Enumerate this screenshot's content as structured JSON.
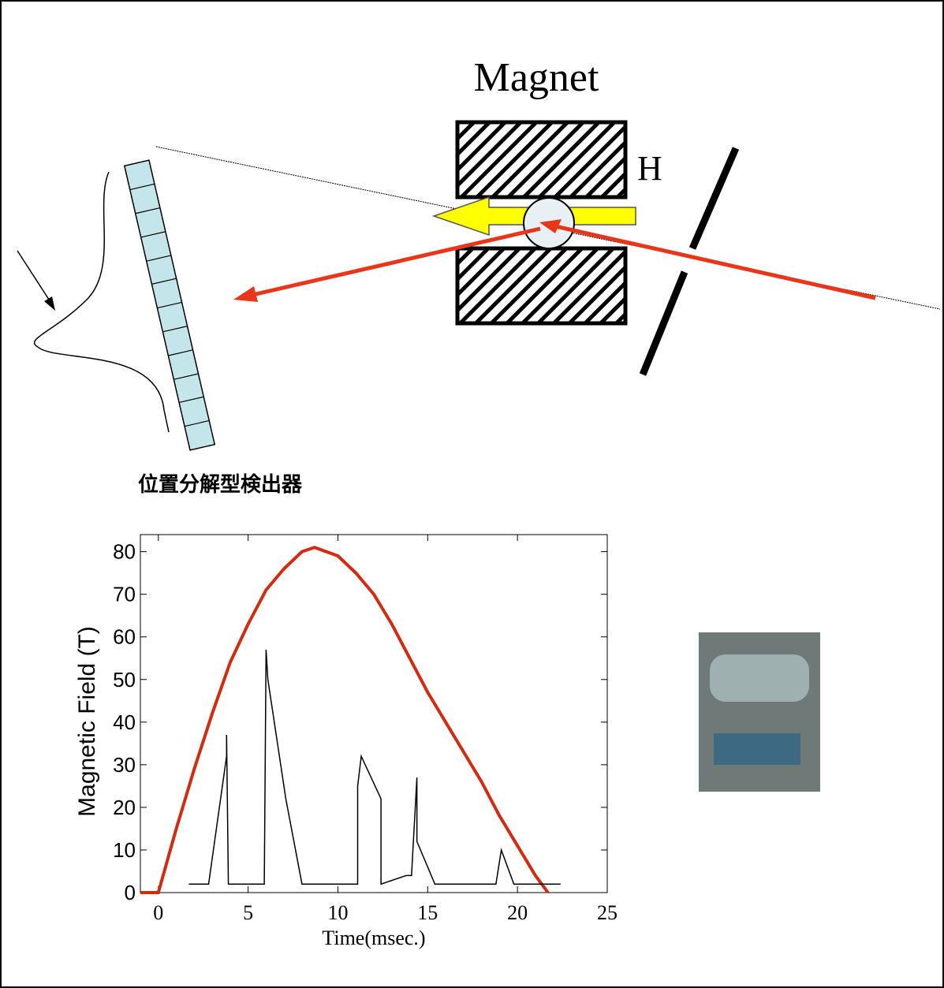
{
  "diagram": {
    "magnet_label": "Magnet",
    "field_label": "H",
    "detector_label": "位置分解型検出器"
  },
  "chart_data": {
    "type": "line",
    "x_label": "Time(msec.)",
    "y_label": "Magnetic Field (T)",
    "xlim": [
      -1,
      25
    ],
    "xticks": [
      0,
      5,
      10,
      15,
      20,
      25
    ],
    "ylim": [
      0,
      84
    ],
    "yticks": [
      0,
      10,
      20,
      30,
      40,
      50,
      60,
      70,
      80
    ],
    "series": [
      {
        "color": "#d42a10",
        "x": [
          -1,
          0,
          1,
          2,
          3,
          4,
          5,
          6,
          7,
          8,
          8.7,
          10,
          11,
          12,
          13,
          14,
          15,
          16,
          17,
          18,
          19,
          20,
          21,
          21.7
        ],
        "values": [
          0,
          0,
          15,
          29,
          42,
          54,
          63,
          71,
          76,
          80,
          81,
          79,
          75,
          70,
          63,
          55,
          47,
          40,
          33,
          26,
          18,
          11,
          4,
          0
        ]
      },
      {
        "color": "#000000",
        "x": [
          1.7,
          2.8,
          3.8,
          3.8,
          3.9,
          5.9,
          6,
          6.1,
          7.1,
          8,
          11.1,
          11.1,
          11.3,
          12.4,
          12.4,
          13.8,
          14.1,
          14.4,
          14.4,
          15.4,
          18.8,
          19.1,
          19.8,
          22.4
        ],
        "values": [
          2,
          2,
          32,
          37,
          2,
          2,
          57,
          50,
          22,
          2,
          2,
          25,
          32,
          22,
          2,
          4,
          4,
          27,
          12,
          2,
          2,
          10,
          2,
          2
        ]
      }
    ]
  }
}
